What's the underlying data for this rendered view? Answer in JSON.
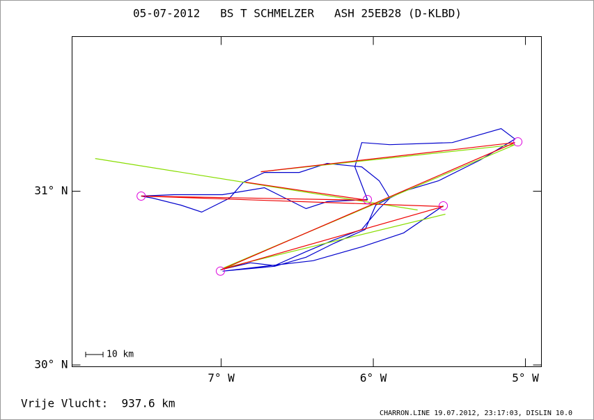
{
  "chart_data": {
    "type": "line",
    "title": "05-07-2012   BS T SCHMELZER   ASH 25EB28 (D-KLBD)",
    "xlim": [
      -7.98,
      -4.895
    ],
    "ylim": [
      29.99,
      31.89
    ],
    "xticks": [
      {
        "value": -7,
        "label": "7° W"
      },
      {
        "value": -6,
        "label": "6° W"
      },
      {
        "value": -5,
        "label": "5° W"
      }
    ],
    "yticks": [
      {
        "value": 30,
        "label": "30° N"
      },
      {
        "value": 31,
        "label": "31° N"
      }
    ],
    "scale_label": "10 km",
    "annotations": [
      "Vrije Vlucht:  937.6 km",
      "CHARRON.LINE 19.07.2012, 23:17:03, DISLIN 10.0"
    ],
    "series": [
      {
        "color": "#0000cc",
        "mode": "line",
        "x": [
          -7.005,
          -6.808,
          -6.648,
          -6.442,
          -6.259,
          -6.076,
          -5.961,
          -5.892,
          -5.961,
          -6.076,
          -6.304,
          -6.487,
          -6.716,
          -6.854,
          -6.945,
          -7.128,
          -7.265,
          -7.449,
          -7.526,
          -7.311,
          -6.991,
          -6.716,
          -6.579,
          -6.442,
          -6.304,
          -6.039,
          -6.121,
          -6.076,
          -5.892,
          -5.481,
          -5.16,
          -5.069,
          -5.297,
          -5.572,
          -5.801,
          -5.984,
          -6.053,
          -6.259,
          -6.442,
          -6.648,
          -6.991,
          -6.396,
          -6.076,
          -5.801,
          -5.54
        ],
        "y": [
          30.548,
          30.588,
          30.572,
          30.652,
          30.72,
          30.78,
          30.9,
          30.96,
          31.06,
          31.14,
          31.16,
          31.108,
          31.108,
          31.052,
          30.96,
          30.88,
          30.92,
          30.96,
          30.972,
          30.98,
          30.98,
          31.02,
          30.96,
          30.9,
          30.94,
          30.952,
          31.14,
          31.28,
          31.268,
          31.28,
          31.36,
          31.3,
          31.18,
          31.06,
          31.0,
          30.92,
          30.78,
          30.7,
          30.62,
          30.568,
          30.54,
          30.6,
          30.68,
          30.76,
          30.916
        ]
      },
      {
        "color": "#88dd00",
        "mode": "line",
        "x": [
          -7.828,
          -5.709,
          null,
          -6.739,
          -5.069,
          -6.991,
          -5.526
        ],
        "y": [
          31.188,
          30.892,
          null,
          31.112,
          31.268,
          30.556,
          30.868
        ]
      },
      {
        "color": "#ee0000",
        "mode": "line",
        "x": [
          -6.739,
          -5.069,
          -7.0,
          -5.54,
          -7.526,
          -6.039,
          -6.84
        ],
        "y": [
          31.112,
          31.28,
          30.548,
          30.912,
          30.972,
          30.948,
          31.052
        ]
      },
      {
        "color": "#dd00dd",
        "mode": "markers",
        "x": [
          -7.526,
          -6.039,
          -5.54,
          -5.05,
          -7.005
        ],
        "y": [
          30.972,
          30.952,
          30.916,
          31.284,
          30.54
        ]
      }
    ]
  }
}
